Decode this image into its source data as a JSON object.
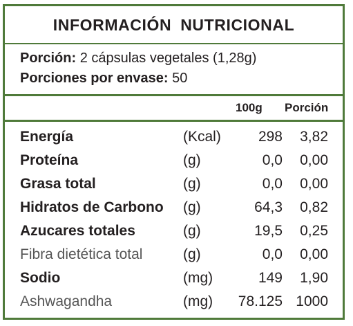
{
  "title": "INFORMACIÓN NUTRICIONAL",
  "serving": {
    "portion_label": "Porción:",
    "portion_value": "2 cápsulas vegetales (1,28g)",
    "per_container_label": "Porciones por envase:",
    "per_container_value": "50"
  },
  "columns": {
    "per100": "100g",
    "per_portion": "Porción"
  },
  "rows": [
    {
      "name": "Energía",
      "unit": "(Kcal)",
      "per100": "298",
      "portion": "3,82"
    },
    {
      "name": "Proteína",
      "unit": "(g)",
      "per100": "0,0",
      "portion": "0,00"
    },
    {
      "name": "Grasa total",
      "unit": "(g)",
      "per100": "0,0",
      "portion": "0,00"
    },
    {
      "name": "Hidratos de Carbono",
      "unit": "(g)",
      "per100": "64,3",
      "portion": "0,82"
    },
    {
      "name": "Azucares totales",
      "unit": "(g)",
      "per100": "19,5",
      "portion": "0,25"
    },
    {
      "name": "Fibra dietética total",
      "unit": "(g)",
      "per100": "0,0",
      "portion": "0,00"
    },
    {
      "name": "Sodio",
      "unit": "(mg)",
      "per100": "149",
      "portion": "1,90"
    },
    {
      "name": "Ashwagandha",
      "unit": "(mg)",
      "per100": "78.125",
      "portion": "1000"
    }
  ],
  "colors": {
    "border": "#4f7a3a",
    "text": "#231f20"
  }
}
